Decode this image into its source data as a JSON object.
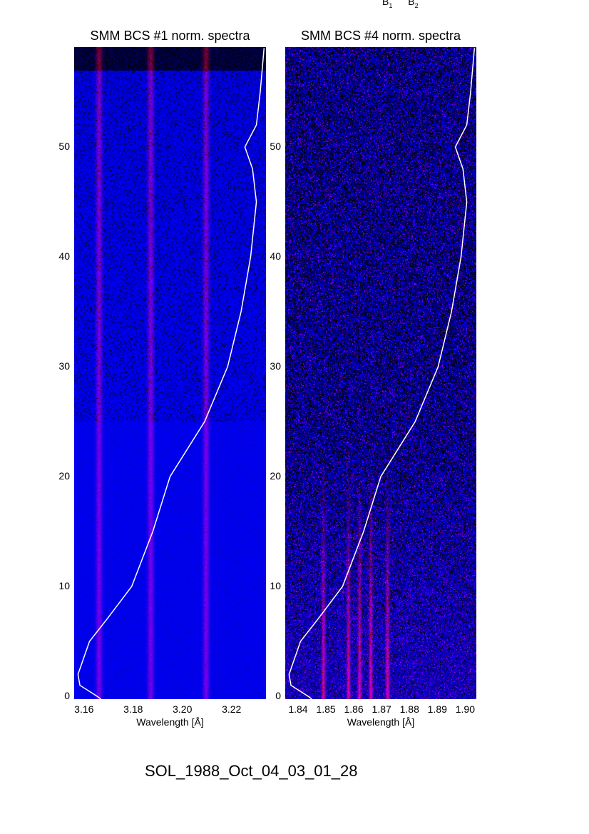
{
  "header": {
    "labels": [
      "B",
      "B"
    ],
    "subscripts": [
      "1",
      "2"
    ]
  },
  "footer": "SOL_1988_Oct_04_03_01_28",
  "chart_data": [
    {
      "type": "heatmap",
      "title": "SMM BCS #1 norm. spectra",
      "xlabel": "Wavelength [Å]",
      "ylabel": "",
      "xlim": [
        3.156,
        3.234
      ],
      "ylim": [
        0,
        59
      ],
      "xticks": [
        "3.16",
        "3.18",
        "3.20",
        "3.22"
      ],
      "yticks": [
        "0",
        "10",
        "20",
        "30",
        "40",
        "50"
      ],
      "colormap": [
        "#000000",
        "#2020ff",
        "#c01020"
      ],
      "bright_lines": [
        3.166,
        3.187,
        3.2095
      ],
      "light_curve": {
        "color": "#ffffff",
        "t": [
          0,
          1,
          2,
          5,
          7,
          10,
          15,
          20,
          25,
          30,
          35,
          40,
          45,
          48,
          50,
          52,
          55,
          59
        ],
        "rel_intensity": [
          0.12,
          0.03,
          0.02,
          0.08,
          0.17,
          0.3,
          0.41,
          0.5,
          0.68,
          0.8,
          0.87,
          0.92,
          0.95,
          0.93,
          0.89,
          0.95,
          0.97,
          0.99
        ]
      }
    },
    {
      "type": "heatmap",
      "title": "SMM BCS #4 norm. spectra",
      "xlabel": "Wavelength [Å]",
      "ylabel": "",
      "xlim": [
        1.8354,
        1.904
      ],
      "ylim": [
        0,
        59
      ],
      "xticks": [
        "1.84",
        "1.85",
        "1.86",
        "1.87",
        "1.88",
        "1.89",
        "1.90"
      ],
      "yticks": [
        "0",
        "10",
        "20",
        "30",
        "40",
        "50"
      ],
      "colormap": [
        "#000000",
        "#2020ff",
        "#c01020"
      ],
      "bright_lines": [
        1.849,
        1.858,
        1.862,
        1.866,
        1.872
      ],
      "light_curve": {
        "color": "#ffffff",
        "t": [
          0,
          1,
          2,
          5,
          7,
          10,
          15,
          20,
          25,
          30,
          35,
          40,
          45,
          48,
          50,
          52,
          55,
          59
        ],
        "rel_intensity": [
          0.12,
          0.03,
          0.02,
          0.08,
          0.17,
          0.3,
          0.41,
          0.5,
          0.68,
          0.8,
          0.87,
          0.92,
          0.95,
          0.93,
          0.89,
          0.95,
          0.97,
          0.99
        ]
      }
    }
  ]
}
